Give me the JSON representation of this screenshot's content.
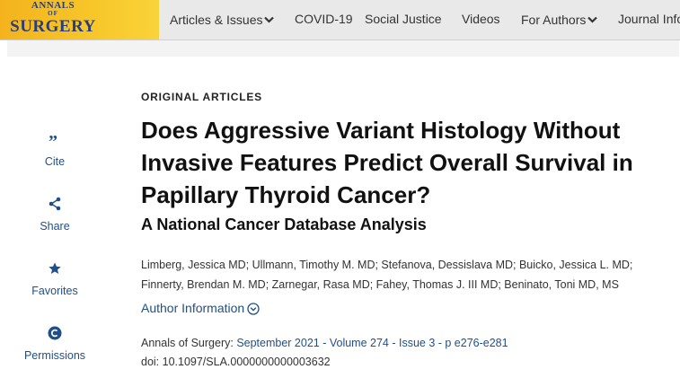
{
  "logo": {
    "line1": "ANNALS",
    "line2": "OF",
    "line3": "SURGERY"
  },
  "nav": {
    "items": [
      {
        "label": "Articles & Issues",
        "dropdown": true
      },
      {
        "label": "COVID-19",
        "dropdown": false
      },
      {
        "label": "Social Justice",
        "dropdown": false
      },
      {
        "label": "Videos",
        "dropdown": false
      },
      {
        "label": "For Authors",
        "dropdown": true
      },
      {
        "label": "Journal Info",
        "dropdown": false
      }
    ]
  },
  "tools": {
    "cite": {
      "label": "Cite",
      "icon": "quote-icon"
    },
    "share": {
      "label": "Share",
      "icon": "share-icon"
    },
    "favorites": {
      "label": "Favorites",
      "icon": "star-icon"
    },
    "permissions": {
      "label": "Permissions",
      "icon": "copyright-icon"
    }
  },
  "article": {
    "category": "ORIGINAL ARTICLES",
    "title": "Does Aggressive Variant Histology Without Invasive Features Predict Overall Survival in Papillary Thyroid Cancer?",
    "subtitle": "A National Cancer Database Analysis",
    "authors": "Limberg, Jessica MD; Ullmann, Timothy M. MD; Stefanova, Dessislava MD; Buicko, Jessica L. MD; Finnerty, Brendan M. MD; Zarnegar, Rasa MD; Fahey, Thomas J. III MD; Beninato, Toni MD, MS",
    "author_info_label": "Author Information",
    "citation": {
      "journal": "Annals of Surgery: ",
      "issue_link": "September 2021 - Volume 274 - Issue 3 - p e276-e281"
    },
    "doi": "doi: 10.1097/SLA.0000000000003632"
  },
  "colors": {
    "logo_bg": "#f7c72a",
    "logo_text": "#2a3f7a",
    "nav_bg": "#e9e9e9",
    "link": "#1e4f8a"
  }
}
